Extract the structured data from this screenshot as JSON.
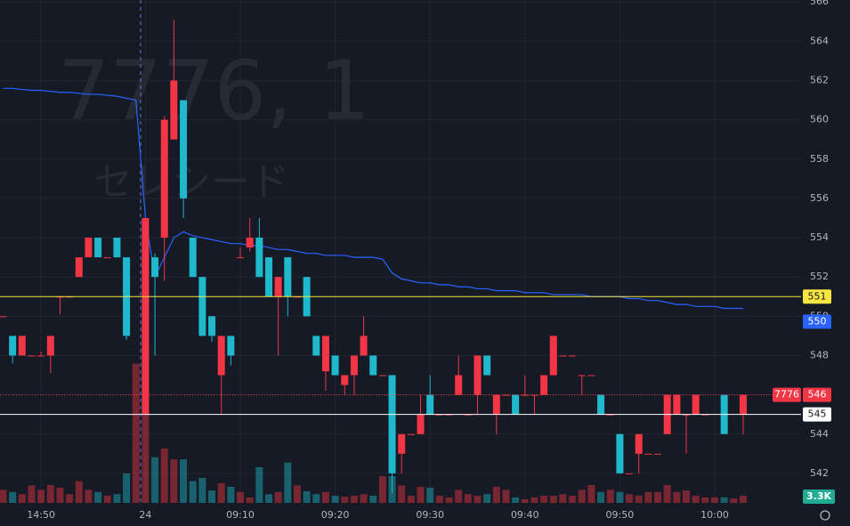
{
  "chart_data": {
    "type": "candlestick",
    "watermark": [
      "7776, 1",
      "セレシード"
    ],
    "categories": [
      null,
      null,
      null,
      null,
      "14:50",
      null,
      null,
      null,
      null,
      null,
      null,
      null,
      null,
      null,
      null,
      "24",
      null,
      null,
      null,
      null,
      null,
      null,
      null,
      null,
      null,
      "09:10",
      null,
      null,
      null,
      null,
      null,
      null,
      null,
      null,
      null,
      "09:20",
      null,
      null,
      null,
      null,
      null,
      null,
      null,
      null,
      null,
      "09:30",
      null,
      null,
      null,
      null,
      null,
      null,
      null,
      null,
      null,
      "09:40",
      null,
      null,
      null,
      null,
      null,
      null,
      null,
      null,
      null,
      "09:50",
      null,
      null,
      null,
      null,
      null,
      null,
      null,
      null,
      null,
      "10:00",
      null,
      null,
      null
    ],
    "ohlc": [
      [
        550,
        550,
        550,
        550
      ],
      [
        549,
        549,
        547.6,
        548
      ],
      [
        548,
        549,
        548,
        549
      ],
      [
        548,
        548,
        548,
        548
      ],
      [
        548,
        548.2,
        548,
        548
      ],
      [
        548,
        549,
        547.1,
        549
      ],
      [
        551,
        551,
        550.1,
        551
      ],
      [
        551,
        551,
        551,
        551
      ],
      [
        552,
        553,
        552,
        553
      ],
      [
        553,
        554,
        553,
        554
      ],
      [
        554,
        554,
        553,
        553
      ],
      [
        553,
        553,
        553,
        553
      ],
      [
        554,
        554,
        553,
        553
      ],
      [
        553,
        553,
        548.8,
        549
      ],
      null,
      [
        545,
        555,
        545,
        555
      ],
      [
        553,
        553.2,
        548,
        552
      ],
      [
        554,
        560.2,
        551.8,
        560
      ],
      [
        559,
        565.1,
        559,
        562
      ],
      [
        561,
        561,
        555,
        556
      ],
      [
        554,
        554,
        552,
        552
      ],
      [
        552,
        552,
        549,
        549
      ],
      [
        550,
        550,
        548.7,
        549
      ],
      [
        547,
        549,
        545,
        549
      ],
      [
        549,
        549,
        547.5,
        548
      ],
      [
        553,
        553.5,
        553,
        553
      ],
      [
        553.5,
        555,
        553.3,
        554
      ],
      [
        554,
        555,
        552,
        552
      ],
      [
        553,
        553,
        551,
        551
      ],
      [
        551,
        552,
        548,
        552
      ],
      [
        553,
        553,
        550,
        551
      ],
      [
        551,
        551,
        551,
        551
      ],
      [
        552,
        552,
        550,
        550
      ],
      [
        549,
        549,
        548,
        548
      ],
      [
        547.2,
        549,
        546.2,
        549
      ],
      [
        548,
        548,
        547,
        547
      ],
      [
        546.5,
        547,
        546,
        547
      ],
      [
        547,
        548,
        546,
        548
      ],
      [
        548,
        550,
        548,
        549
      ],
      [
        548,
        548,
        547,
        547
      ],
      [
        547,
        547,
        547,
        547
      ],
      [
        547,
        547,
        541,
        542
      ],
      [
        543,
        544,
        542,
        544
      ],
      [
        544,
        544,
        544,
        544
      ],
      [
        544,
        546,
        544,
        545
      ],
      [
        546,
        547,
        545,
        545
      ],
      [
        545,
        545,
        545,
        545
      ],
      [
        545,
        545,
        545,
        545
      ],
      [
        546,
        548,
        546,
        547
      ],
      [
        545,
        545,
        545,
        545
      ],
      [
        546,
        548,
        545,
        548
      ],
      [
        548,
        548,
        547,
        547
      ],
      [
        545,
        546,
        544,
        546
      ],
      [
        546,
        546,
        546,
        546
      ],
      [
        546,
        546,
        545,
        545
      ],
      [
        546,
        547,
        546,
        546
      ],
      [
        546,
        546,
        545,
        546
      ],
      [
        546,
        547,
        546,
        547
      ],
      [
        547,
        549,
        547,
        549
      ],
      [
        548,
        548,
        548,
        548
      ],
      [
        548,
        548,
        548,
        548
      ],
      [
        547,
        547,
        546,
        547
      ],
      [
        547,
        547,
        547,
        547
      ],
      [
        546,
        546,
        545,
        545
      ],
      [
        545,
        545,
        545,
        545
      ],
      [
        544,
        544,
        542,
        542
      ],
      [
        542,
        542,
        542,
        542
      ],
      [
        543,
        544,
        542,
        544
      ],
      [
        543,
        543,
        543,
        543
      ],
      [
        543,
        543,
        543,
        543
      ],
      [
        544,
        546,
        544,
        546
      ],
      [
        545,
        546,
        545,
        546
      ],
      [
        545,
        545,
        543,
        545
      ],
      [
        545,
        546,
        545,
        546
      ],
      [
        545,
        545,
        545,
        545
      ],
      null,
      [
        546,
        546,
        544,
        544
      ],
      null,
      [
        545,
        546,
        544,
        546
      ]
    ],
    "up_color": "#f23645",
    "down_color": "#1fb8cd",
    "volume": [
      6000,
      5000,
      4000,
      8000,
      6000,
      8200,
      7000,
      4000,
      10000,
      6000,
      5000,
      3300,
      4000,
      13500,
      64000,
      41000,
      21000,
      25000,
      20000,
      20000,
      10000,
      11500,
      5700,
      9000,
      7400,
      5000,
      2500,
      16400,
      4000,
      5000,
      18500,
      8000,
      5300,
      4000,
      5000,
      3300,
      2900,
      3300,
      4000,
      3300,
      12300,
      12300,
      8000,
      3300,
      7400,
      7000,
      3300,
      2500,
      6000,
      4000,
      3300,
      4000,
      7400,
      6000,
      2500,
      1600,
      2500,
      3300,
      3300,
      4000,
      3300,
      6000,
      8200,
      5000,
      6000,
      5000,
      4000,
      3300,
      5000,
      5000,
      8200,
      5000,
      5700,
      3300,
      2500,
      2500,
      2500,
      2000,
      3300
    ],
    "volume_lim": [
      0,
      133000
    ],
    "volume_last": {
      "value": 3300,
      "label": "3.3K"
    },
    "line": {
      "color": "#2962ff",
      "values": [
        561.6,
        561.6,
        561.55,
        561.5,
        561.5,
        561.45,
        561.4,
        561.4,
        561.35,
        561.3,
        561.3,
        561.25,
        561.2,
        561.1,
        561.0,
        555,
        552,
        553,
        554,
        554.3,
        554.1,
        554,
        553.9,
        553.8,
        553.7,
        553.7,
        553.6,
        553.6,
        553.5,
        553.4,
        553.4,
        553.3,
        553.2,
        553.2,
        553.1,
        553.1,
        553.1,
        553,
        553,
        553,
        552.9,
        552.2,
        551.9,
        551.8,
        551.7,
        551.7,
        551.6,
        551.6,
        551.5,
        551.5,
        551.4,
        551.4,
        551.3,
        551.3,
        551.3,
        551.2,
        551.2,
        551.2,
        551.1,
        551.1,
        551.1,
        551.1,
        551,
        551,
        551,
        551,
        550.9,
        550.9,
        550.8,
        550.8,
        550.7,
        550.6,
        550.6,
        550.5,
        550.5,
        550.5,
        550.4,
        550.4,
        550.4
      ]
    },
    "price_lines": [
      {
        "value": 551,
        "color": "#f5e642",
        "text_color": "#131722",
        "line": true
      },
      {
        "value": 550,
        "color": "#2962ff",
        "text_color": "#ffffff",
        "line": false
      },
      {
        "value": 546,
        "color": "#f23645",
        "text_color": "#ffffff",
        "line": "dotted",
        "symbol": "7776"
      },
      {
        "value": 545,
        "color": "#ffffff",
        "text_color": "#131722",
        "line": true
      }
    ],
    "ylim": [
      540.5,
      566.1
    ],
    "yticks": [
      542,
      544,
      546,
      548,
      550,
      552,
      554,
      556,
      558,
      560,
      562,
      564,
      566
    ],
    "grid": true
  }
}
